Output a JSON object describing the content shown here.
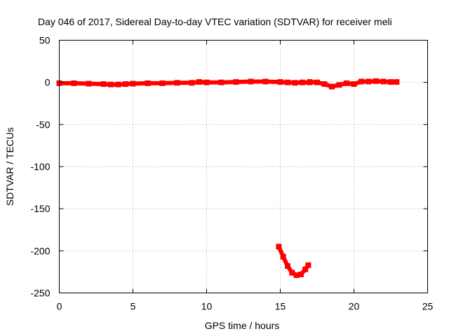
{
  "chart_data": {
    "type": "line",
    "title": "Day 046 of 2017, Sidereal Day-to-day VTEC variation (SDTVAR) for receiver meli",
    "xlabel": "GPS time / hours",
    "ylabel": "SDTVAR / TECUs",
    "xlim": [
      0,
      25
    ],
    "ylim": [
      -250,
      50
    ],
    "xticks": [
      0,
      5,
      10,
      15,
      20,
      25
    ],
    "yticks": [
      50,
      0,
      -50,
      -100,
      -150,
      -200,
      -250
    ],
    "grid": true,
    "series": [
      {
        "color": "#ff0000",
        "segments": [
          [
            [
              0.0,
              -1
            ],
            [
              1.0,
              -1
            ],
            [
              2.0,
              -1.5
            ],
            [
              3.0,
              -2
            ],
            [
              3.5,
              -2.5
            ],
            [
              4.0,
              -2.5
            ],
            [
              4.5,
              -2
            ],
            [
              5.0,
              -1.5
            ],
            [
              6.0,
              -1
            ],
            [
              7.0,
              -1
            ],
            [
              8.0,
              -0.5
            ],
            [
              9.0,
              -0.5
            ],
            [
              9.5,
              0.5
            ],
            [
              10.0,
              0
            ],
            [
              11.0,
              0
            ],
            [
              12.0,
              0.5
            ],
            [
              13.0,
              1
            ],
            [
              14.0,
              1
            ],
            [
              15.0,
              0.5
            ],
            [
              15.5,
              0
            ],
            [
              16.0,
              -0.5
            ],
            [
              16.5,
              0
            ],
            [
              17.0,
              0
            ]
          ],
          [
            [
              17.0,
              0.5
            ],
            [
              17.5,
              0
            ],
            [
              18.0,
              -2
            ],
            [
              18.5,
              -5
            ],
            [
              19.0,
              -3
            ],
            [
              19.5,
              -1
            ],
            [
              20.0,
              -2
            ],
            [
              20.5,
              1
            ],
            [
              21.0,
              1
            ],
            [
              21.5,
              1.5
            ],
            [
              22.0,
              1
            ],
            [
              22.5,
              0.5
            ],
            [
              22.9,
              0.5
            ]
          ],
          [
            [
              14.9,
              -195
            ],
            [
              15.2,
              -207
            ],
            [
              15.5,
              -218
            ],
            [
              15.8,
              -226
            ],
            [
              16.1,
              -229
            ],
            [
              16.4,
              -228
            ],
            [
              16.7,
              -222
            ],
            [
              16.9,
              -217
            ]
          ]
        ]
      }
    ]
  }
}
